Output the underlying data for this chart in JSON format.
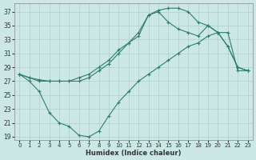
{
  "xlabel": "Humidex (Indice chaleur)",
  "bg_color": "#cce8e4",
  "grid_color": "#b8d8d4",
  "line_color": "#2e7d72",
  "xlim": [
    -0.5,
    23.5
  ],
  "ylim": [
    18.5,
    38.2
  ],
  "xticks": [
    0,
    1,
    2,
    3,
    4,
    5,
    6,
    7,
    8,
    9,
    10,
    11,
    12,
    13,
    14,
    15,
    16,
    17,
    18,
    19,
    20,
    21,
    22,
    23
  ],
  "yticks": [
    19,
    21,
    23,
    25,
    27,
    29,
    31,
    33,
    35,
    37
  ],
  "curve1_x": [
    0,
    1,
    2,
    3,
    4,
    5,
    6,
    7,
    8,
    9,
    10,
    11,
    12,
    13,
    14,
    15,
    16,
    17,
    18,
    19,
    20,
    21,
    22,
    23
  ],
  "curve1_y": [
    28,
    27.5,
    27.2,
    27,
    27,
    27,
    27,
    27.5,
    28.5,
    29.5,
    31,
    32.5,
    33.5,
    36.5,
    37.2,
    37.5,
    37.5,
    37,
    35.5,
    35,
    34,
    32,
    29,
    28.5
  ],
  "curve2_x": [
    0,
    1,
    2,
    3,
    4,
    5,
    6,
    7,
    8,
    9,
    10,
    11,
    12,
    13,
    14,
    15,
    16,
    17,
    18,
    19,
    20,
    21,
    22,
    23
  ],
  "curve2_y": [
    28,
    27.5,
    27,
    27,
    27,
    27,
    27.5,
    28,
    29,
    30,
    31.5,
    32.5,
    34,
    36.5,
    37,
    35.5,
    34.5,
    34,
    33.5,
    35,
    34,
    32,
    29,
    28.5
  ],
  "curve3_x": [
    0,
    1,
    2,
    3,
    4,
    5,
    6,
    7,
    8,
    9,
    10,
    11,
    12,
    13,
    14,
    15,
    16,
    17,
    18,
    19,
    20,
    21,
    22,
    23
  ],
  "curve3_y": [
    28,
    27,
    25.5,
    22.5,
    21,
    20.5,
    19.2,
    19.0,
    19.8,
    22,
    24,
    25.5,
    27,
    28,
    29,
    30,
    31,
    32,
    32.5,
    33.5,
    34,
    34,
    28.5,
    28.5
  ]
}
